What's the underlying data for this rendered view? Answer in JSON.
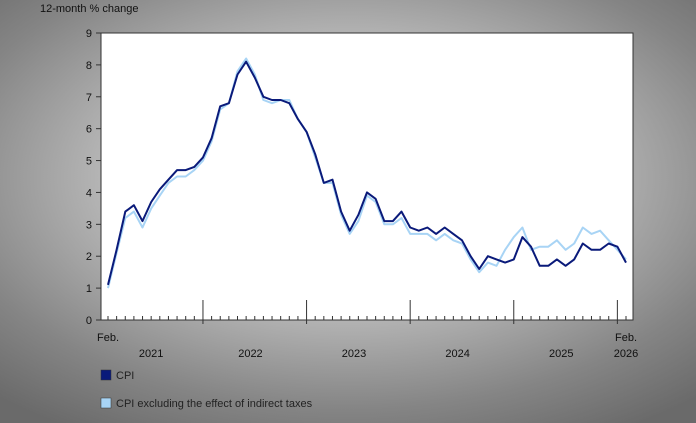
{
  "chart_data": {
    "type": "line",
    "ylabel": "12-month % change",
    "ylim": [
      0,
      9
    ],
    "y_ticks": [
      0,
      1,
      2,
      3,
      4,
      5,
      6,
      7,
      8,
      9
    ],
    "x_start_label": "Feb.",
    "x_end_label": "Feb.",
    "year_labels": [
      "2021",
      "2022",
      "2023",
      "2024",
      "2025",
      "2026"
    ],
    "x": [
      "2021-02",
      "2021-03",
      "2021-04",
      "2021-05",
      "2021-06",
      "2021-07",
      "2021-08",
      "2021-09",
      "2021-10",
      "2021-11",
      "2021-12",
      "2022-01",
      "2022-02",
      "2022-03",
      "2022-04",
      "2022-05",
      "2022-06",
      "2022-07",
      "2022-08",
      "2022-09",
      "2022-10",
      "2022-11",
      "2022-12",
      "2023-01",
      "2023-02",
      "2023-03",
      "2023-04",
      "2023-05",
      "2023-06",
      "2023-07",
      "2023-08",
      "2023-09",
      "2023-10",
      "2023-11",
      "2023-12",
      "2024-01",
      "2024-02",
      "2024-03",
      "2024-04",
      "2024-05",
      "2024-06",
      "2024-07",
      "2024-08",
      "2024-09",
      "2024-10",
      "2024-11",
      "2024-12",
      "2025-01",
      "2025-02",
      "2025-03",
      "2025-04",
      "2025-05",
      "2025-06",
      "2025-07",
      "2025-08",
      "2025-09",
      "2025-10",
      "2025-11",
      "2025-12",
      "2026-01",
      "2026-02"
    ],
    "series": [
      {
        "name": "CPI",
        "color": "#0a1a7a",
        "values": [
          1.1,
          2.2,
          3.4,
          3.6,
          3.1,
          3.7,
          4.1,
          4.4,
          4.7,
          4.7,
          4.8,
          5.1,
          5.7,
          6.7,
          6.8,
          7.7,
          8.1,
          7.6,
          7.0,
          6.9,
          6.9,
          6.8,
          6.3,
          5.9,
          5.2,
          4.3,
          4.4,
          3.4,
          2.8,
          3.3,
          4.0,
          3.8,
          3.1,
          3.1,
          3.4,
          2.9,
          2.8,
          2.9,
          2.7,
          2.9,
          2.7,
          2.5,
          2.0,
          1.6,
          2.0,
          1.9,
          1.8,
          1.9,
          2.6,
          2.3,
          1.7,
          1.7,
          1.9,
          1.7,
          1.9,
          2.4,
          2.2,
          2.2,
          2.4,
          2.3,
          1.8
        ]
      },
      {
        "name": "CPI excluding the effect of indirect taxes",
        "color": "#a8d4f5",
        "values": [
          1.0,
          2.1,
          3.2,
          3.4,
          2.9,
          3.5,
          3.9,
          4.3,
          4.5,
          4.5,
          4.7,
          5.0,
          5.6,
          6.6,
          6.8,
          7.8,
          8.2,
          7.7,
          6.9,
          6.8,
          6.9,
          6.9,
          6.3,
          5.9,
          5.1,
          4.3,
          4.3,
          3.3,
          2.7,
          3.1,
          3.9,
          3.7,
          3.0,
          3.0,
          3.2,
          2.7,
          2.7,
          2.7,
          2.5,
          2.7,
          2.5,
          2.4,
          1.9,
          1.5,
          1.8,
          1.7,
          2.2,
          2.6,
          2.9,
          2.2,
          2.3,
          2.3,
          2.5,
          2.2,
          2.4,
          2.9,
          2.7,
          2.8,
          2.5,
          2.2,
          1.9
        ]
      }
    ],
    "grid": false,
    "legend_position": "bottom-left"
  }
}
